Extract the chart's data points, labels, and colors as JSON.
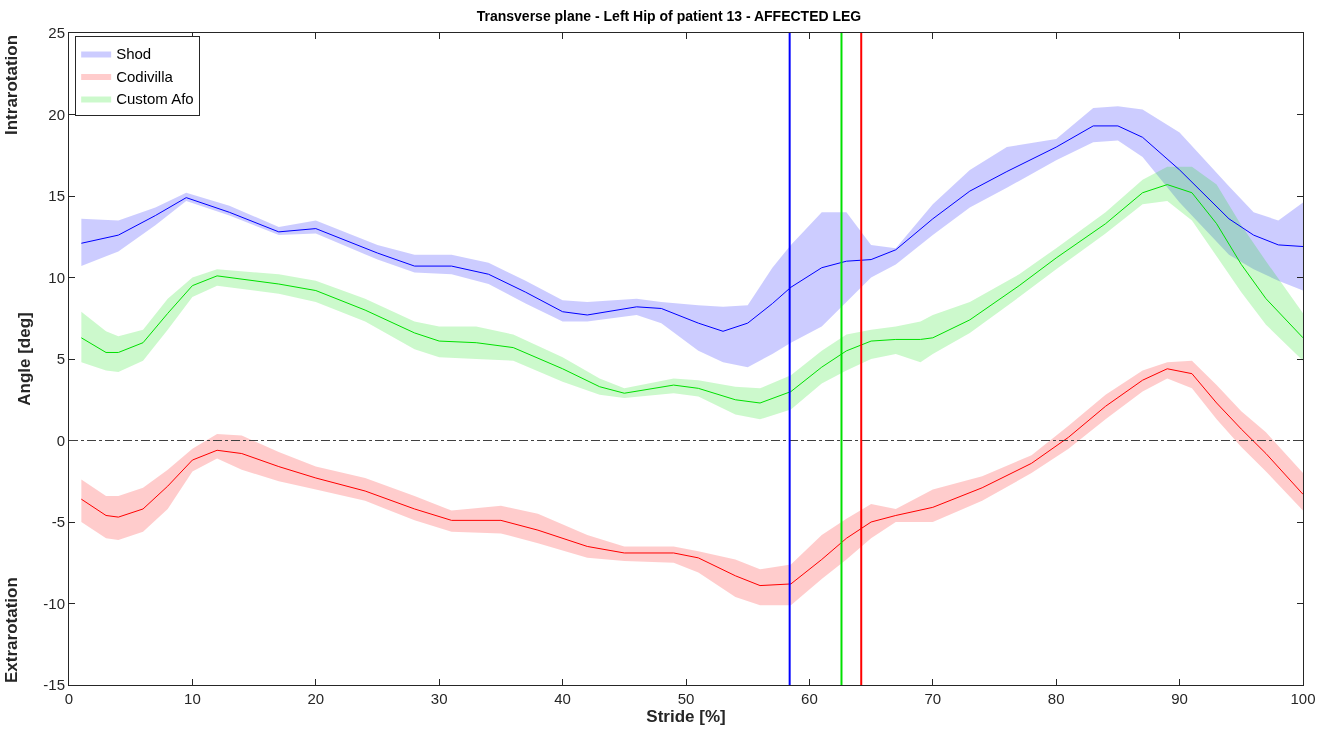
{
  "chart_data": {
    "type": "line",
    "title": "Transverse plane - Left Hip of patient 13 - AFFECTED LEG",
    "xlabel": "Stride [%]",
    "ylabel": "Angle [deg]",
    "annotations": [
      "Intrarotation",
      "Extrarotation"
    ],
    "xlim": [
      0,
      100
    ],
    "xticks": [
      0,
      10,
      20,
      30,
      40,
      50,
      60,
      70,
      80,
      90,
      100
    ],
    "ylim": [
      -15,
      25
    ],
    "yticks": [
      -15,
      -10,
      -5,
      0,
      5,
      10,
      15,
      20,
      25
    ],
    "legend": "top left",
    "line_style": "solid",
    "marker": "none",
    "series": [
      {
        "name": "Shod",
        "color": "#0000ff",
        "x": [
          1,
          4,
          7,
          9.5,
          13,
          17,
          20,
          25,
          28,
          31,
          34,
          37,
          40,
          42,
          46,
          48,
          51,
          53,
          55,
          57,
          58.5,
          61,
          63,
          65,
          67,
          70,
          73,
          76,
          80,
          83,
          85,
          87,
          90,
          94,
          96,
          98,
          100
        ],
        "values": [
          12.1,
          12.6,
          13.8,
          14.9,
          14.0,
          12.8,
          13.0,
          11.5,
          10.7,
          10.7,
          10.2,
          9.1,
          7.9,
          7.7,
          8.2,
          8.1,
          7.2,
          6.7,
          7.2,
          8.4,
          9.4,
          10.6,
          11.0,
          11.1,
          11.7,
          13.6,
          15.3,
          16.5,
          18.0,
          19.3,
          19.3,
          18.6,
          16.6,
          13.6,
          12.6,
          12.0,
          11.9
        ],
        "lower": [
          10.7,
          11.6,
          13.2,
          14.7,
          13.8,
          12.6,
          12.7,
          11.1,
          10.3,
          10.2,
          9.6,
          8.4,
          7.3,
          7.3,
          7.7,
          7.2,
          5.5,
          4.8,
          4.5,
          5.3,
          6.0,
          7.0,
          8.5,
          10.0,
          10.8,
          12.6,
          14.3,
          15.5,
          17.2,
          18.3,
          18.4,
          17.4,
          14.6,
          11.4,
          10.5,
          9.8,
          9.2
        ],
        "upper": [
          13.6,
          13.5,
          14.3,
          15.2,
          14.4,
          13.1,
          13.5,
          12.0,
          11.4,
          11.4,
          10.9,
          9.8,
          8.6,
          8.5,
          8.7,
          8.5,
          8.3,
          8.2,
          8.3,
          10.6,
          12.0,
          14.0,
          14.0,
          12.0,
          11.8,
          14.5,
          16.6,
          18.0,
          18.5,
          20.4,
          20.5,
          20.3,
          18.9,
          15.6,
          14.0,
          13.5,
          14.6
        ]
      },
      {
        "name": "Codivilla",
        "color": "#ff0000",
        "x": [
          1,
          3,
          4,
          6,
          8,
          10,
          12,
          14,
          17,
          20,
          24,
          28,
          31,
          35,
          38,
          42,
          45,
          49,
          51,
          54,
          56,
          58.5,
          61,
          63,
          65,
          67,
          70,
          74,
          78,
          81,
          84,
          87,
          89,
          91,
          93,
          95,
          97,
          100
        ],
        "values": [
          -3.6,
          -4.6,
          -4.7,
          -4.2,
          -2.8,
          -1.2,
          -0.6,
          -0.8,
          -1.6,
          -2.3,
          -3.1,
          -4.2,
          -4.9,
          -4.9,
          -5.5,
          -6.5,
          -6.9,
          -6.9,
          -7.2,
          -8.3,
          -8.9,
          -8.8,
          -7.3,
          -6.0,
          -5.0,
          -4.6,
          -4.1,
          -2.9,
          -1.4,
          0.2,
          2.1,
          3.7,
          4.4,
          4.1,
          2.3,
          0.7,
          -0.8,
          -3.3
        ],
        "lower": [
          -5.0,
          -6.0,
          -6.1,
          -5.6,
          -4.2,
          -1.9,
          -1.1,
          -1.8,
          -2.5,
          -3.0,
          -3.7,
          -4.9,
          -5.6,
          -5.7,
          -6.3,
          -7.2,
          -7.4,
          -7.5,
          -8.1,
          -9.6,
          -10.1,
          -10.1,
          -8.5,
          -7.3,
          -6.0,
          -5.0,
          -5.0,
          -3.7,
          -2.0,
          -0.5,
          1.3,
          3.0,
          3.8,
          3.2,
          1.3,
          -0.4,
          -1.9,
          -4.3
        ],
        "upper": [
          -2.4,
          -3.4,
          -3.4,
          -2.9,
          -1.8,
          -0.5,
          0.4,
          0.3,
          -0.7,
          -1.6,
          -2.3,
          -3.4,
          -4.3,
          -4.0,
          -4.5,
          -5.8,
          -6.5,
          -6.5,
          -6.8,
          -7.3,
          -7.9,
          -7.6,
          -5.8,
          -4.8,
          -3.9,
          -4.2,
          -3.0,
          -2.2,
          -0.9,
          0.9,
          2.8,
          4.3,
          4.8,
          4.9,
          3.4,
          1.8,
          0.5,
          -2.0
        ]
      },
      {
        "name": "Custom Afo",
        "color": "#00e000",
        "x": [
          1,
          3,
          4,
          6,
          8,
          10,
          12,
          17,
          20,
          24,
          28,
          30,
          33,
          36,
          40,
          43,
          45,
          49,
          51,
          54,
          56,
          58.5,
          61,
          63,
          65,
          67,
          69,
          70,
          73,
          77,
          80,
          84,
          87,
          89,
          91,
          93,
          95,
          97,
          100
        ],
        "values": [
          6.3,
          5.4,
          5.4,
          6.0,
          7.8,
          9.5,
          10.1,
          9.6,
          9.2,
          8.0,
          6.6,
          6.1,
          6.0,
          5.7,
          4.4,
          3.3,
          2.9,
          3.4,
          3.2,
          2.5,
          2.3,
          3.0,
          4.5,
          5.5,
          6.1,
          6.2,
          6.2,
          6.3,
          7.4,
          9.5,
          11.2,
          13.3,
          15.2,
          15.7,
          15.2,
          13.3,
          10.8,
          8.7,
          6.3
        ],
        "lower": [
          4.8,
          4.3,
          4.2,
          4.9,
          6.8,
          8.8,
          9.5,
          9.0,
          8.5,
          7.3,
          5.6,
          5.1,
          5.0,
          4.9,
          3.6,
          2.8,
          2.6,
          2.9,
          2.7,
          1.6,
          1.3,
          1.9,
          3.5,
          4.3,
          5.0,
          5.3,
          4.8,
          5.3,
          6.6,
          8.8,
          10.5,
          12.7,
          14.5,
          14.7,
          13.5,
          11.3,
          9.1,
          7.1,
          4.9
        ],
        "upper": [
          7.9,
          6.7,
          6.4,
          6.8,
          8.7,
          10.0,
          10.5,
          10.2,
          9.8,
          8.7,
          7.3,
          7.0,
          7.0,
          6.5,
          5.1,
          3.8,
          3.2,
          3.8,
          3.7,
          3.3,
          3.2,
          4.0,
          5.5,
          6.5,
          6.8,
          7.0,
          7.3,
          7.7,
          8.5,
          10.2,
          11.8,
          14.0,
          16.0,
          16.8,
          16.8,
          15.7,
          13.2,
          11.0,
          7.8
        ]
      }
    ],
    "ref_lines": [
      {
        "axis": "y",
        "value": 0,
        "color": "#404040",
        "line_style": "dashdot"
      },
      {
        "axis": "x",
        "value": 58.4,
        "color": "#0000ff",
        "line_style": "solid"
      },
      {
        "axis": "x",
        "value": 62.6,
        "color": "#00e000",
        "line_style": "solid"
      },
      {
        "axis": "x",
        "value": 64.2,
        "color": "#ff0000",
        "line_style": "solid"
      }
    ]
  }
}
